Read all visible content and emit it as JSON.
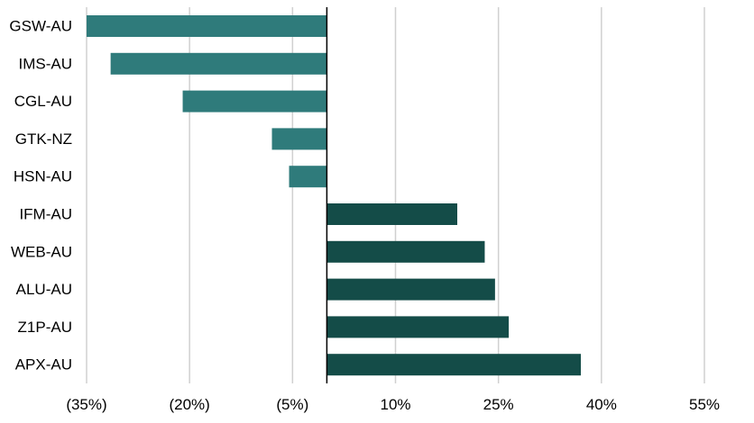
{
  "chart_data": {
    "type": "bar",
    "orientation": "horizontal",
    "title": "",
    "xlabel": "",
    "ylabel": "",
    "categories": [
      "GSW-AU",
      "IMS-AU",
      "CGL-AU",
      "GTK-NZ",
      "HSN-AU",
      "IFM-AU",
      "WEB-AU",
      "ALU-AU",
      "Z1P-AU",
      "APX-AU"
    ],
    "values": [
      -35,
      -31.5,
      -21,
      -8,
      -5.5,
      19,
      23,
      24.5,
      26.5,
      37
    ],
    "xlim": [
      -35,
      55
    ],
    "xticks": [
      -35,
      -20,
      -5,
      10,
      25,
      40,
      55
    ],
    "tick_labels": [
      "(35%)",
      "(20%)",
      "(5%)",
      "10%",
      "25%",
      "40%",
      "55%"
    ],
    "grid": "vertical",
    "legend": "none",
    "colors": {
      "negative": "#2f7b7b",
      "positive": "#144c48",
      "grid": "#d0d0d0",
      "axis": "#000000"
    }
  }
}
